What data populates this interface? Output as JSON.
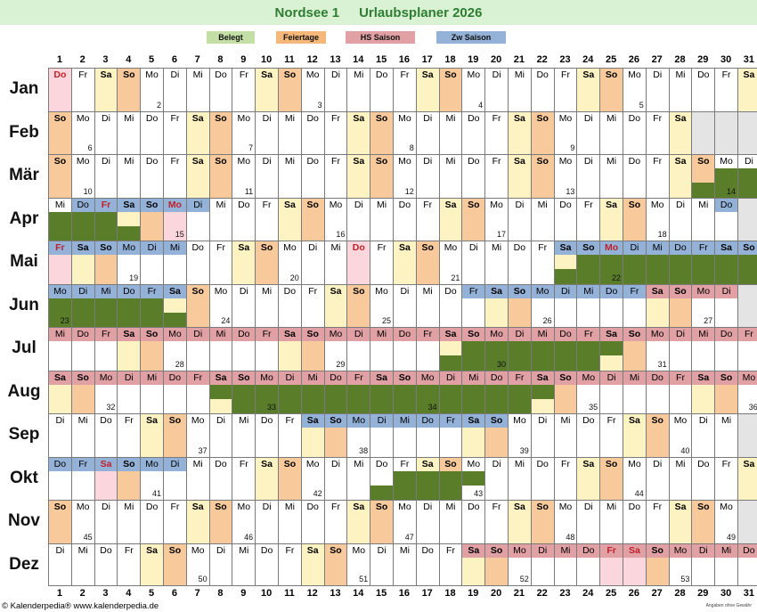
{
  "header": {
    "name": "Nordsee 1",
    "subtitle": "Urlaubsplaner 2026"
  },
  "legend": [
    {
      "label": "Belegt",
      "color": "#c4dfa6"
    },
    {
      "label": "Feiertage",
      "color": "#f5b77a"
    },
    {
      "label": "HS Saison",
      "color": "#e0a0a4"
    },
    {
      "label": "Zw Saison",
      "color": "#94b2d8"
    }
  ],
  "colors": {
    "saturday": "#fdf3c2",
    "sunday": "#f8c99a",
    "holiday_bg": "#fbd6dc",
    "holiday_text": "#c0202a",
    "hs": "#e0a0a4",
    "zw": "#94b2d8",
    "booked": "#5a7d2a",
    "empty": "#e4e4e4",
    "border": "#7a7a7a"
  },
  "months": [
    {
      "name": "Jan",
      "days": [
        "Do",
        "Fr",
        "Sa",
        "So",
        "Mo",
        "Di",
        "Mi",
        "Do",
        "Fr",
        "Sa",
        "So",
        "Mo",
        "Di",
        "Mi",
        "Do",
        "Fr",
        "Sa",
        "So",
        "Mo",
        "Di",
        "Mi",
        "Do",
        "Fr",
        "Sa",
        "So",
        "Mo",
        "Di",
        "Mi",
        "Do",
        "Fr",
        "Sa"
      ],
      "weeks": [
        [
          5,
          "2"
        ],
        [
          12,
          "3"
        ],
        [
          19,
          "4"
        ],
        [
          26,
          "5"
        ]
      ],
      "holidays": [
        1
      ],
      "hs": [],
      "zw": [],
      "booked": []
    },
    {
      "name": "Feb",
      "days": [
        "So",
        "Mo",
        "Di",
        "Mi",
        "Do",
        "Fr",
        "Sa",
        "So",
        "Mo",
        "Di",
        "Mi",
        "Do",
        "Fr",
        "Sa",
        "So",
        "Mo",
        "Di",
        "Mi",
        "Do",
        "Fr",
        "Sa",
        "So",
        "Mo",
        "Di",
        "Mi",
        "Do",
        "Fr",
        "Sa"
      ],
      "weeks": [
        [
          2,
          "6"
        ],
        [
          9,
          "7"
        ],
        [
          16,
          "8"
        ],
        [
          23,
          "9"
        ]
      ],
      "holidays": [],
      "hs": [],
      "zw": [],
      "booked": []
    },
    {
      "name": "Mär",
      "days": [
        "So",
        "Mo",
        "Di",
        "Mi",
        "Do",
        "Fr",
        "Sa",
        "So",
        "Mo",
        "Di",
        "Mi",
        "Do",
        "Fr",
        "Sa",
        "So",
        "Mo",
        "Di",
        "Mi",
        "Do",
        "Fr",
        "Sa",
        "So",
        "Mo",
        "Di",
        "Mi",
        "Do",
        "Fr",
        "Sa",
        "So",
        "Mo",
        "Di"
      ],
      "weeks": [
        [
          2,
          "10"
        ],
        [
          9,
          "11"
        ],
        [
          16,
          "12"
        ],
        [
          23,
          "13"
        ],
        [
          30,
          "14"
        ]
      ],
      "holidays": [],
      "hs": [],
      "zw": [],
      "booked": [
        [
          29,
          "b"
        ],
        [
          30,
          "f"
        ],
        [
          31,
          "f"
        ]
      ]
    },
    {
      "name": "Apr",
      "days": [
        "Mi",
        "Do",
        "Fr",
        "Sa",
        "So",
        "Mo",
        "Di",
        "Mi",
        "Do",
        "Fr",
        "Sa",
        "So",
        "Mo",
        "Di",
        "Mi",
        "Do",
        "Fr",
        "Sa",
        "So",
        "Mo",
        "Di",
        "Mi",
        "Do",
        "Fr",
        "Sa",
        "So",
        "Mo",
        "Di",
        "Mi",
        "Do"
      ],
      "weeks": [
        [
          6,
          "15"
        ],
        [
          13,
          "16"
        ],
        [
          20,
          "17"
        ],
        [
          27,
          "18"
        ]
      ],
      "holidays": [
        3,
        6
      ],
      "hs": [],
      "zw": [
        2,
        3,
        4,
        5,
        6,
        7,
        30
      ],
      "booked": [
        [
          1,
          "f"
        ],
        [
          2,
          "f"
        ],
        [
          3,
          "f"
        ],
        [
          4,
          "b"
        ]
      ]
    },
    {
      "name": "Mai",
      "days": [
        "Fr",
        "Sa",
        "So",
        "Mo",
        "Di",
        "Mi",
        "Do",
        "Fr",
        "Sa",
        "So",
        "Mo",
        "Di",
        "Mi",
        "Do",
        "Fr",
        "Sa",
        "So",
        "Mo",
        "Di",
        "Mi",
        "Do",
        "Fr",
        "Sa",
        "So",
        "Mo",
        "Di",
        "Mi",
        "Do",
        "Fr",
        "Sa",
        "So"
      ],
      "weeks": [
        [
          4,
          "19"
        ],
        [
          11,
          "20"
        ],
        [
          18,
          "21"
        ],
        [
          25,
          "22"
        ]
      ],
      "holidays": [
        1,
        14,
        25
      ],
      "hs": [],
      "zw": [
        1,
        2,
        3,
        4,
        5,
        6,
        23,
        24,
        25,
        26,
        27,
        28,
        29,
        30,
        31
      ],
      "booked": [
        [
          23,
          "b"
        ],
        [
          24,
          "f"
        ],
        [
          25,
          "f"
        ],
        [
          26,
          "f"
        ],
        [
          27,
          "f"
        ],
        [
          28,
          "f"
        ],
        [
          29,
          "f"
        ],
        [
          30,
          "f"
        ],
        [
          31,
          "f"
        ]
      ]
    },
    {
      "name": "Jun",
      "days": [
        "Mo",
        "Di",
        "Mi",
        "Do",
        "Fr",
        "Sa",
        "So",
        "Mo",
        "Di",
        "Mi",
        "Do",
        "Fr",
        "Sa",
        "So",
        "Mo",
        "Di",
        "Mi",
        "Do",
        "Fr",
        "Sa",
        "So",
        "Mo",
        "Di",
        "Mi",
        "Do",
        "Fr",
        "Sa",
        "So",
        "Mo",
        "Di"
      ],
      "weeks": [
        [
          1,
          "23"
        ],
        [
          8,
          "24"
        ],
        [
          15,
          "25"
        ],
        [
          22,
          "26"
        ],
        [
          29,
          "27"
        ]
      ],
      "holidays": [],
      "hs": [
        27,
        28,
        29,
        30
      ],
      "zw": [
        1,
        2,
        3,
        4,
        5,
        6,
        19,
        20,
        21,
        22,
        23,
        24,
        25,
        26
      ],
      "booked": [
        [
          1,
          "f"
        ],
        [
          2,
          "f"
        ],
        [
          3,
          "f"
        ],
        [
          4,
          "f"
        ],
        [
          5,
          "f"
        ],
        [
          6,
          "b"
        ]
      ]
    },
    {
      "name": "Jul",
      "days": [
        "Mi",
        "Do",
        "Fr",
        "Sa",
        "So",
        "Mo",
        "Di",
        "Mi",
        "Do",
        "Fr",
        "Sa",
        "So",
        "Mo",
        "Di",
        "Mi",
        "Do",
        "Fr",
        "Sa",
        "So",
        "Mo",
        "Di",
        "Mi",
        "Do",
        "Fr",
        "Sa",
        "So",
        "Mo",
        "Di",
        "Mi",
        "Do",
        "Fr"
      ],
      "weeks": [
        [
          6,
          "28"
        ],
        [
          13,
          "29"
        ],
        [
          20,
          "30"
        ],
        [
          27,
          "31"
        ]
      ],
      "holidays": [],
      "hs": [
        1,
        2,
        3,
        4,
        5,
        6,
        7,
        8,
        9,
        10,
        11,
        12,
        13,
        14,
        15,
        16,
        17,
        18,
        19,
        20,
        21,
        22,
        23,
        24,
        25,
        26,
        27,
        28,
        29,
        30,
        31
      ],
      "zw": [],
      "booked": [
        [
          18,
          "b"
        ],
        [
          19,
          "f"
        ],
        [
          20,
          "f"
        ],
        [
          21,
          "f"
        ],
        [
          22,
          "f"
        ],
        [
          23,
          "f"
        ],
        [
          24,
          "f"
        ],
        [
          25,
          "t"
        ]
      ]
    },
    {
      "name": "Aug",
      "days": [
        "Sa",
        "So",
        "Mo",
        "Di",
        "Mi",
        "Do",
        "Fr",
        "Sa",
        "So",
        "Mo",
        "Di",
        "Mi",
        "Do",
        "Fr",
        "Sa",
        "So",
        "Mo",
        "Di",
        "Mi",
        "Do",
        "Fr",
        "Sa",
        "So",
        "Mo",
        "Di",
        "Mi",
        "Do",
        "Fr",
        "Sa",
        "So",
        "Mo"
      ],
      "weeks": [
        [
          3,
          "32"
        ],
        [
          10,
          "33"
        ],
        [
          17,
          "34"
        ],
        [
          24,
          "35"
        ],
        [
          31,
          "36"
        ]
      ],
      "holidays": [],
      "hs": [
        1,
        2,
        3,
        4,
        5,
        6,
        7,
        8,
        9,
        10,
        11,
        12,
        13,
        14,
        15,
        16,
        17,
        18,
        19,
        20,
        21,
        22,
        23,
        24,
        25,
        26,
        27,
        28,
        29,
        30,
        31
      ],
      "zw": [],
      "booked": [
        [
          8,
          "t"
        ],
        [
          9,
          "f"
        ],
        [
          10,
          "f"
        ],
        [
          11,
          "f"
        ],
        [
          12,
          "f"
        ],
        [
          13,
          "f"
        ],
        [
          14,
          "f"
        ],
        [
          15,
          "f"
        ],
        [
          16,
          "f"
        ],
        [
          17,
          "f"
        ],
        [
          18,
          "f"
        ],
        [
          19,
          "f"
        ],
        [
          20,
          "f"
        ],
        [
          21,
          "f"
        ],
        [
          22,
          "t"
        ]
      ]
    },
    {
      "name": "Sep",
      "days": [
        "Di",
        "Mi",
        "Do",
        "Fr",
        "Sa",
        "So",
        "Mo",
        "Di",
        "Mi",
        "Do",
        "Fr",
        "Sa",
        "So",
        "Mo",
        "Di",
        "Mi",
        "Do",
        "Fr",
        "Sa",
        "So",
        "Mo",
        "Di",
        "Mi",
        "Do",
        "Fr",
        "Sa",
        "So",
        "Mo",
        "Di",
        "Mi"
      ],
      "weeks": [
        [
          7,
          "37"
        ],
        [
          14,
          "38"
        ],
        [
          21,
          "39"
        ],
        [
          28,
          "40"
        ]
      ],
      "holidays": [],
      "hs": [],
      "zw": [
        12,
        13,
        14,
        15,
        16,
        17,
        18,
        19,
        20
      ],
      "booked": []
    },
    {
      "name": "Okt",
      "days": [
        "Do",
        "Fr",
        "Sa",
        "So",
        "Mo",
        "Di",
        "Mi",
        "Do",
        "Fr",
        "Sa",
        "So",
        "Mo",
        "Di",
        "Mi",
        "Do",
        "Fr",
        "Sa",
        "So",
        "Mo",
        "Di",
        "Mi",
        "Do",
        "Fr",
        "Sa",
        "So",
        "Mo",
        "Di",
        "Mi",
        "Do",
        "Fr",
        "Sa"
      ],
      "weeks": [
        [
          5,
          "41"
        ],
        [
          12,
          "42"
        ],
        [
          19,
          "43"
        ],
        [
          26,
          "44"
        ]
      ],
      "holidays": [
        3
      ],
      "hs": [],
      "zw": [
        1,
        2,
        3,
        4,
        5,
        6
      ],
      "booked": [
        [
          15,
          "b"
        ],
        [
          16,
          "f"
        ],
        [
          17,
          "f"
        ],
        [
          18,
          "f"
        ],
        [
          19,
          "t"
        ]
      ]
    },
    {
      "name": "Nov",
      "days": [
        "So",
        "Mo",
        "Di",
        "Mi",
        "Do",
        "Fr",
        "Sa",
        "So",
        "Mo",
        "Di",
        "Mi",
        "Do",
        "Fr",
        "Sa",
        "So",
        "Mo",
        "Di",
        "Mi",
        "Do",
        "Fr",
        "Sa",
        "So",
        "Mo",
        "Di",
        "Mi",
        "Do",
        "Fr",
        "Sa",
        "So",
        "Mo"
      ],
      "weeks": [
        [
          2,
          "45"
        ],
        [
          9,
          "46"
        ],
        [
          16,
          "47"
        ],
        [
          23,
          "48"
        ],
        [
          30,
          "49"
        ]
      ],
      "holidays": [],
      "hs": [],
      "zw": [],
      "booked": []
    },
    {
      "name": "Dez",
      "days": [
        "Di",
        "Mi",
        "Do",
        "Fr",
        "Sa",
        "So",
        "Mo",
        "Di",
        "Mi",
        "Do",
        "Fr",
        "Sa",
        "So",
        "Mo",
        "Di",
        "Mi",
        "Do",
        "Fr",
        "Sa",
        "So",
        "Mo",
        "Di",
        "Mi",
        "Do",
        "Fr",
        "Sa",
        "So",
        "Mo",
        "Di",
        "Mi",
        "Do"
      ],
      "weeks": [
        [
          7,
          "50"
        ],
        [
          14,
          "51"
        ],
        [
          21,
          "52"
        ],
        [
          28,
          "53"
        ]
      ],
      "holidays": [
        25,
        26
      ],
      "hs": [
        19,
        20,
        21,
        22,
        23,
        24,
        25,
        26,
        27,
        28,
        29,
        30,
        31
      ],
      "zw": [],
      "booked": []
    }
  ],
  "footer": {
    "copyright": "© Kalenderpedia®   www.kalenderpedia.de",
    "note": "Angaben ohne Gewähr"
  }
}
